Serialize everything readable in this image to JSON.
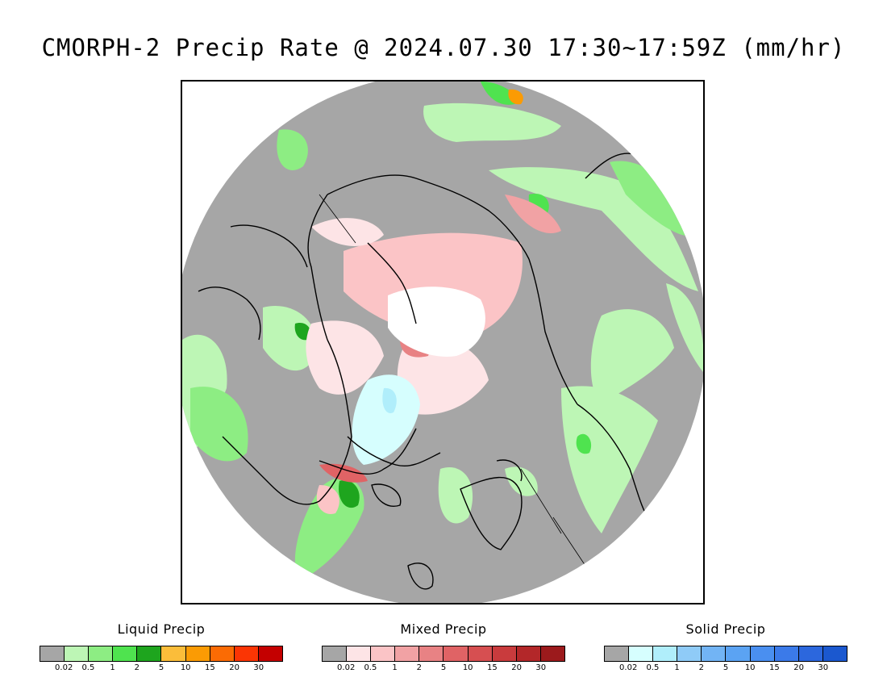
{
  "title": "CMORPH-2 Precip Rate @ 2024.07.30 17:30~17:59Z (mm/hr)",
  "map": {
    "projection": "polar stereographic, north pole",
    "background_color": "#a6a6a6",
    "coastline_color": "#000000"
  },
  "legends": [
    {
      "id": "liquid",
      "title": "Liquid Precip",
      "ticks": [
        "0.02",
        "0.5",
        "1",
        "2",
        "5",
        "10",
        "15",
        "20",
        "30"
      ],
      "colors": [
        "#a6a6a6",
        "#bdf6b5",
        "#8ded83",
        "#4fe34f",
        "#1ea51e",
        "#fbbd3a",
        "#fb9b04",
        "#fb6b04",
        "#fb3504",
        "#c40000"
      ]
    },
    {
      "id": "mixed",
      "title": "Mixed Precip",
      "ticks": [
        "0.02",
        "0.5",
        "1",
        "2",
        "5",
        "10",
        "15",
        "20",
        "30"
      ],
      "colors": [
        "#a6a6a6",
        "#fde4e6",
        "#fbc4c6",
        "#f1a2a4",
        "#e88284",
        "#e06365",
        "#d64f51",
        "#c93b3d",
        "#b32729",
        "#9c1a1c"
      ]
    },
    {
      "id": "solid",
      "title": "Solid Precip",
      "ticks": [
        "0.02",
        "0.5",
        "1",
        "2",
        "5",
        "10",
        "15",
        "20",
        "30"
      ],
      "colors": [
        "#a6a6a6",
        "#d6fefe",
        "#b0eefb",
        "#8fcbf7",
        "#72b4f5",
        "#5ba3f3",
        "#4a8ff0",
        "#3b7ae9",
        "#2c67dd",
        "#1b58cf"
      ]
    }
  ]
}
